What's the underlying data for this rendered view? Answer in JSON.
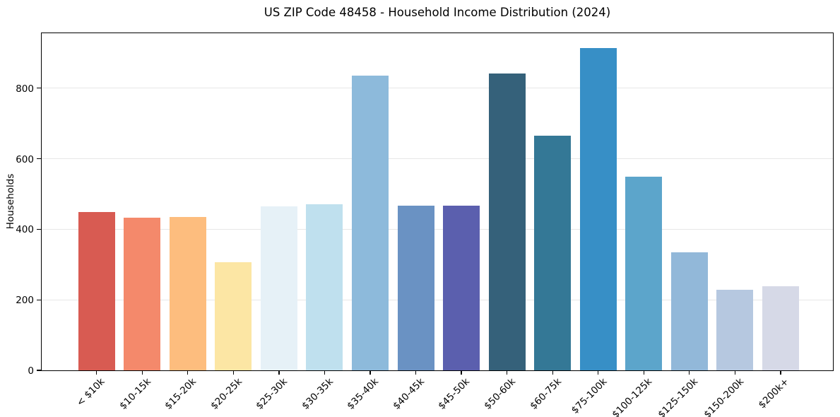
{
  "chart_data": {
    "type": "bar",
    "title": "US ZIP Code 48458 - Household Income Distribution (2024)",
    "xlabel": "",
    "ylabel": "Households",
    "categories": [
      "< $10k",
      "$10-15k",
      "$15-20k",
      "$20-25k",
      "$25-30k",
      "$30-35k",
      "$35-40k",
      "$40-45k",
      "$45-50k",
      "$50-60k",
      "$60-75k",
      "$75-100k",
      "$100-125k",
      "$125-150k",
      "$150-200k",
      "$200k+"
    ],
    "values": [
      449,
      433,
      435,
      307,
      466,
      471,
      836,
      467,
      468,
      841,
      666,
      915,
      549,
      335,
      228,
      238
    ],
    "bar_colors": [
      "#d85b52",
      "#f4896b",
      "#fdbd7e",
      "#fce6a4",
      "#e6f1f7",
      "#bfe0ee",
      "#8dbadb",
      "#6a92c3",
      "#5b5fae",
      "#35617a",
      "#347896",
      "#378fc6",
      "#5ca5cb",
      "#92b8d9",
      "#b6c8e0",
      "#d6d9e7"
    ],
    "ylim": [
      0,
      960
    ],
    "yticks": [
      0,
      200,
      400,
      600,
      800
    ],
    "grid": "horizontal",
    "gridline_color": "#e7e7e7",
    "spine_color": "#000000",
    "background_color": "#ffffff",
    "x_tick_rotation_deg": 45,
    "legend": "none"
  }
}
